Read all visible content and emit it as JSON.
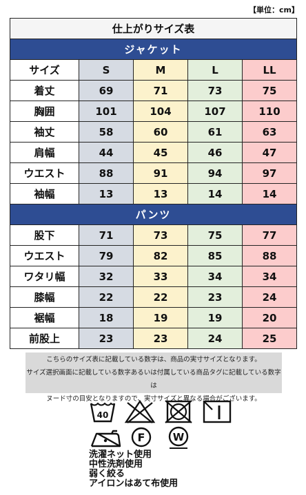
{
  "unit_label": "【単位：cm】",
  "title": "仕上がりサイズ表",
  "header": {
    "label": "サイズ",
    "sizes": [
      "S",
      "M",
      "L",
      "LL"
    ]
  },
  "jacket": {
    "title": "ジャケット",
    "rows": [
      {
        "label": "着丈",
        "values": [
          "69",
          "71",
          "73",
          "75"
        ]
      },
      {
        "label": "胸囲",
        "values": [
          "101",
          "104",
          "107",
          "110"
        ]
      },
      {
        "label": "袖丈",
        "values": [
          "58",
          "60",
          "61",
          "63"
        ]
      },
      {
        "label": "肩幅",
        "values": [
          "44",
          "45",
          "46",
          "47"
        ]
      },
      {
        "label": "ウエスト",
        "values": [
          "88",
          "91",
          "94",
          "97"
        ]
      },
      {
        "label": "袖幅",
        "values": [
          "13",
          "13",
          "14",
          "14"
        ]
      }
    ]
  },
  "pants": {
    "title": "パンツ",
    "rows": [
      {
        "label": "股下",
        "values": [
          "71",
          "73",
          "75",
          "77"
        ]
      },
      {
        "label": "ウエスト",
        "values": [
          "79",
          "82",
          "85",
          "88"
        ]
      },
      {
        "label": "ワタリ幅",
        "values": [
          "32",
          "33",
          "34",
          "34"
        ]
      },
      {
        "label": "膝幅",
        "values": [
          "22",
          "22",
          "23",
          "24"
        ]
      },
      {
        "label": "裾幅",
        "values": [
          "18",
          "19",
          "19",
          "20"
        ]
      },
      {
        "label": "前股上",
        "values": [
          "23",
          "23",
          "24",
          "25"
        ]
      }
    ]
  },
  "note": {
    "lines": [
      "こちらのサイズ表に記載している数字は、商品の実寸サイズとなります。",
      "サイズ選択画面に記載している数字あるいは付属している商品タグに記載している数字は",
      "ヌード寸の目安となりますので、実寸サイズと異なる場合がございます。"
    ]
  },
  "care": {
    "wash_temp": "40",
    "dry_letter": "F",
    "wet_letter": "W",
    "icons": [
      "wash-tub-icon",
      "no-bleach-icon",
      "no-tumble-dry-icon",
      "line-dry-shade-icon",
      "iron-icon",
      "dry-clean-f-icon",
      "wet-clean-w-icon"
    ],
    "instructions": [
      "洗濯ネット使用",
      "中性洗剤使用",
      "弱く絞る",
      "アイロンはあて布使用"
    ]
  }
}
